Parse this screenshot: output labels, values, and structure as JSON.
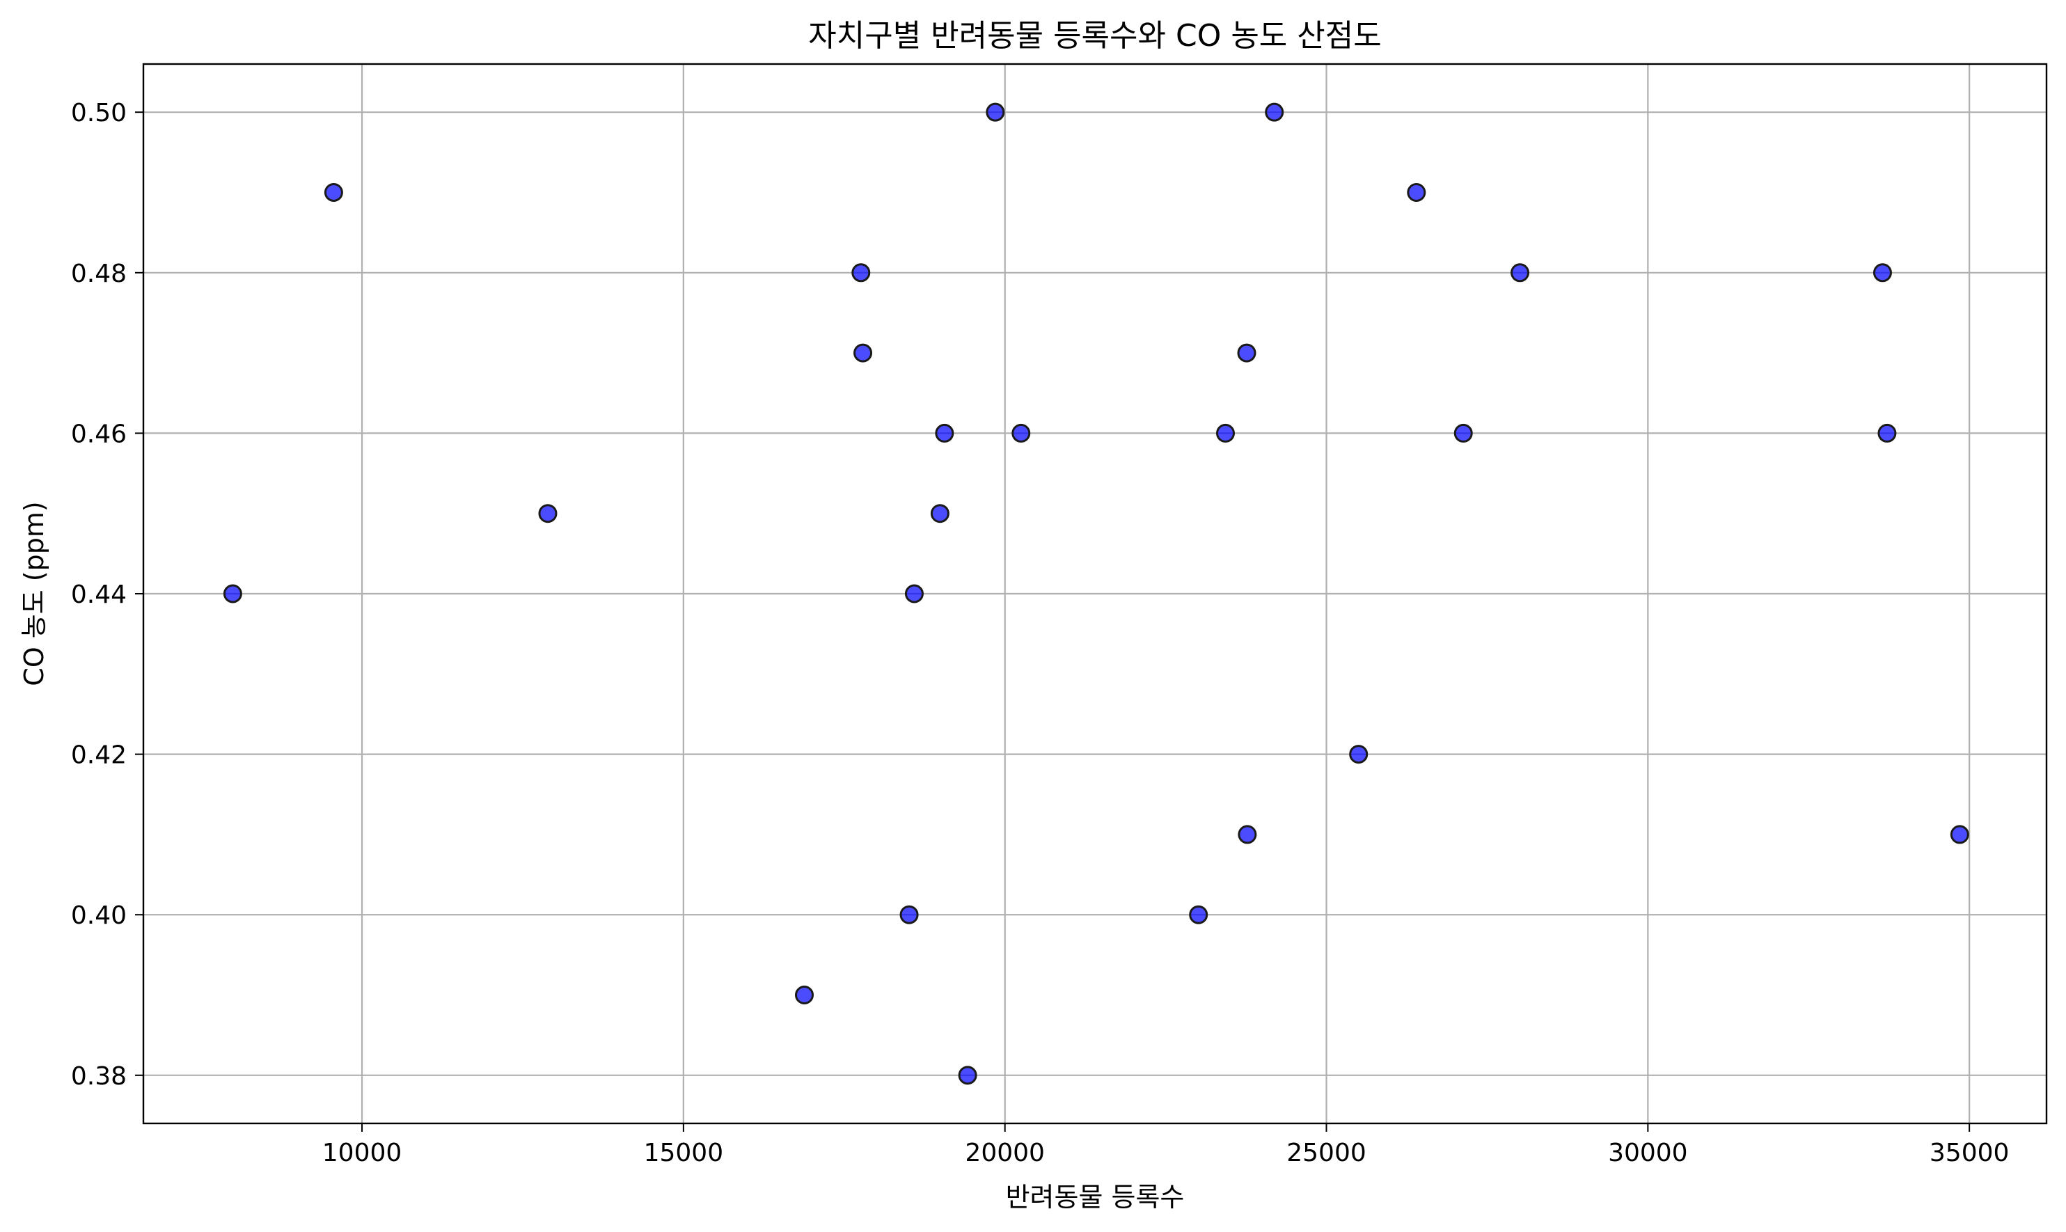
{
  "chart_data": {
    "type": "scatter",
    "title": "자치구별 반려동물 등록수와 CO 농도 산점도",
    "xlabel": "반려동물 등록수",
    "ylabel": "CO 농도 (ppm)",
    "xlim": [
      6600,
      36200
    ],
    "ylim": [
      0.374,
      0.506
    ],
    "xticks": [
      10000,
      15000,
      20000,
      25000,
      30000,
      35000
    ],
    "xtick_labels": [
      "10000",
      "15000",
      "20000",
      "25000",
      "30000",
      "35000"
    ],
    "yticks": [
      0.38,
      0.4,
      0.42,
      0.44,
      0.46,
      0.48,
      0.5
    ],
    "ytick_labels": [
      "0.38",
      "0.40",
      "0.42",
      "0.44",
      "0.46",
      "0.48",
      "0.50"
    ],
    "grid": true,
    "marker_color": "#0000ff",
    "marker_edge_color": "#1a1a1a",
    "points": [
      {
        "x": 7990,
        "y": 0.44
      },
      {
        "x": 9560,
        "y": 0.49
      },
      {
        "x": 12890,
        "y": 0.45
      },
      {
        "x": 16880,
        "y": 0.39
      },
      {
        "x": 17760,
        "y": 0.48
      },
      {
        "x": 17790,
        "y": 0.47
      },
      {
        "x": 18510,
        "y": 0.4
      },
      {
        "x": 18590,
        "y": 0.44
      },
      {
        "x": 18990,
        "y": 0.45
      },
      {
        "x": 19060,
        "y": 0.46
      },
      {
        "x": 19420,
        "y": 0.38
      },
      {
        "x": 19850,
        "y": 0.5
      },
      {
        "x": 20250,
        "y": 0.46
      },
      {
        "x": 23010,
        "y": 0.4
      },
      {
        "x": 23430,
        "y": 0.46
      },
      {
        "x": 23760,
        "y": 0.47
      },
      {
        "x": 23770,
        "y": 0.41
      },
      {
        "x": 24190,
        "y": 0.5
      },
      {
        "x": 25500,
        "y": 0.42
      },
      {
        "x": 26400,
        "y": 0.49
      },
      {
        "x": 27130,
        "y": 0.46
      },
      {
        "x": 28010,
        "y": 0.48
      },
      {
        "x": 33650,
        "y": 0.48
      },
      {
        "x": 33720,
        "y": 0.46
      },
      {
        "x": 34850,
        "y": 0.41
      }
    ]
  }
}
